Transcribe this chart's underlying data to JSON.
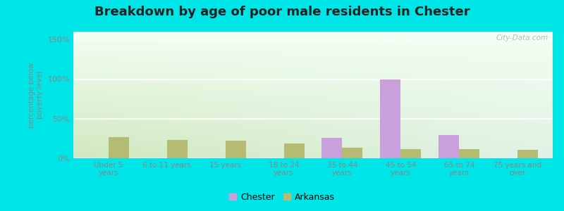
{
  "title": "Breakdown by age of poor male residents in Chester",
  "categories": [
    "Under 5\nyears",
    "6 to 11 years",
    "15 years",
    "18 to 24\nyears",
    "35 to 44\nyears",
    "45 to 54\nyears",
    "65 to 74\nyears",
    "75 years and\nover"
  ],
  "chester_values": [
    0,
    0,
    0,
    0,
    26,
    100,
    29,
    0
  ],
  "arkansas_values": [
    27,
    23,
    22,
    19,
    13,
    12,
    12,
    11
  ],
  "chester_color": "#c9a0dc",
  "arkansas_color": "#b5bb72",
  "ylabel": "percentage below\npoverty level",
  "ylim": [
    0,
    160
  ],
  "yticks": [
    0,
    50,
    100,
    150
  ],
  "ytick_labels": [
    "0%",
    "50%",
    "100%",
    "150%"
  ],
  "bar_width": 0.35,
  "outer_background": "#00e5e8",
  "legend_labels": [
    "Chester",
    "Arkansas"
  ],
  "watermark": "City-Data.com",
  "grid_color": "#cccccc",
  "tick_color": "#888888",
  "title_color": "#222222"
}
